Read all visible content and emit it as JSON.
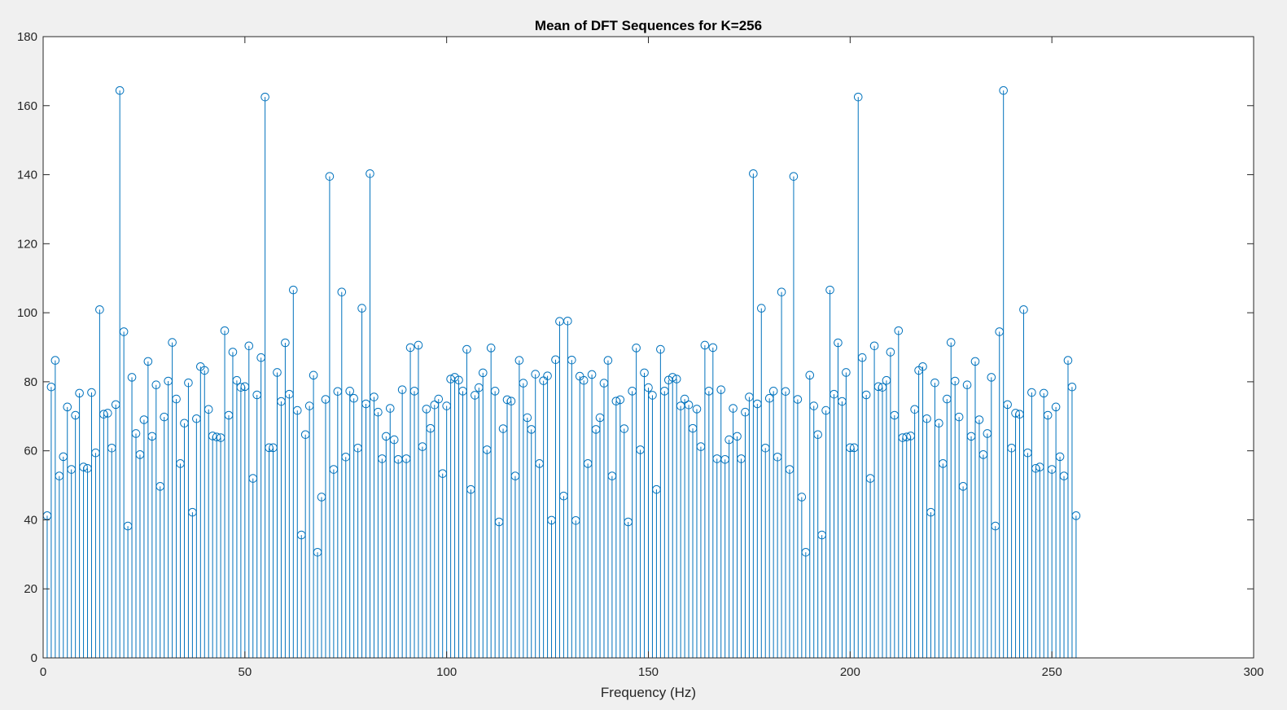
{
  "chart_data": {
    "type": "stem",
    "title": "Mean of DFT Sequences for K=256",
    "xlabel": "Frequency (Hz)",
    "ylabel": "",
    "xlim": [
      0,
      300
    ],
    "ylim": [
      0,
      180
    ],
    "xticks": [
      0,
      50,
      100,
      150,
      200,
      250,
      300
    ],
    "yticks": [
      0,
      20,
      40,
      60,
      80,
      100,
      120,
      140,
      160,
      180
    ],
    "grid": false,
    "color": "#0072bd",
    "marker": "circle",
    "x_start": 1,
    "x_step": 1,
    "values": [
      41.2,
      78.5,
      86.2,
      52.7,
      58.3,
      72.7,
      54.6,
      70.3,
      76.7,
      55.3,
      54.9,
      76.9,
      59.4,
      100.9,
      70.6,
      70.9,
      60.8,
      73.4,
      164.4,
      94.5,
      38.2,
      81.3,
      65.0,
      58.9,
      69.0,
      85.9,
      64.2,
      79.1,
      49.7,
      69.8,
      80.2,
      91.4,
      75.0,
      56.3,
      68.0,
      79.7,
      42.2,
      69.3,
      84.4,
      83.3,
      72.0,
      64.3,
      64.0,
      63.8,
      94.8,
      70.3,
      88.6,
      80.4,
      78.4,
      78.6,
      90.4,
      52.0,
      76.2,
      87.0,
      162.5,
      60.9,
      60.9,
      82.7,
      74.3,
      91.3,
      76.4,
      106.6,
      71.7,
      35.6,
      64.7,
      73.0,
      81.9,
      30.6,
      46.6,
      74.9,
      139.5,
      54.6,
      77.2,
      106.0,
      58.2,
      77.3,
      75.2,
      60.8,
      101.3,
      73.6,
      140.3,
      75.6,
      71.2,
      57.7,
      64.2,
      72.3,
      63.2,
      57.5,
      77.7,
      57.7,
      89.9,
      77.3,
      90.6,
      61.2,
      72.1,
      66.5,
      73.3,
      75.0,
      53.4,
      73.0,
      80.8,
      81.3,
      80.5,
      77.3,
      89.4,
      48.8,
      76.1,
      78.3,
      82.6,
      60.3,
      89.8,
      77.3,
      39.4,
      66.4,
      74.8,
      74.4,
      52.7,
      86.2,
      79.6,
      69.6,
      66.2,
      82.2,
      56.3,
      80.3,
      81.7,
      39.9,
      86.4,
      97.5,
      46.9,
      97.6,
      86.3,
      39.8,
      81.6,
      80.4,
      56.3,
      82.1,
      66.2,
      69.6,
      79.6,
      86.2,
      52.7,
      74.4,
      74.8,
      66.4,
      39.4,
      77.3,
      89.8,
      60.3,
      82.6,
      78.3,
      76.1,
      48.8,
      89.4,
      77.3,
      80.5,
      81.3,
      80.8,
      73.0,
      75.0,
      73.3,
      66.5,
      72.1,
      61.2,
      90.6,
      77.3,
      89.9,
      57.7,
      77.7,
      57.5,
      63.2,
      72.3,
      64.2,
      57.7,
      71.2,
      75.6,
      140.3,
      73.6,
      101.3,
      60.8,
      75.2,
      77.3,
      58.2,
      106.0,
      77.2,
      54.6,
      139.5,
      74.9,
      46.6,
      30.6,
      81.9,
      73.0,
      64.7,
      35.6,
      71.7,
      106.6,
      76.4,
      91.3,
      74.3,
      82.7,
      60.9,
      60.9,
      162.5,
      87.0,
      76.2,
      52.0,
      90.4,
      78.6,
      78.4,
      80.4,
      88.6,
      70.3,
      94.8,
      63.8,
      64.0,
      64.3,
      72.0,
      83.3,
      84.4,
      69.3,
      42.2,
      79.7,
      68.0,
      56.3,
      75.0,
      91.4,
      80.2,
      69.8,
      49.7,
      79.1,
      64.2,
      85.9,
      69.0,
      58.9,
      65.0,
      81.3,
      38.2,
      94.5,
      164.4,
      73.4,
      60.8,
      70.9,
      70.6,
      100.9,
      59.4,
      76.9,
      54.9,
      55.3,
      76.7,
      70.3,
      54.6,
      72.7,
      58.3,
      52.7,
      86.2,
      78.5,
      41.2
    ]
  }
}
